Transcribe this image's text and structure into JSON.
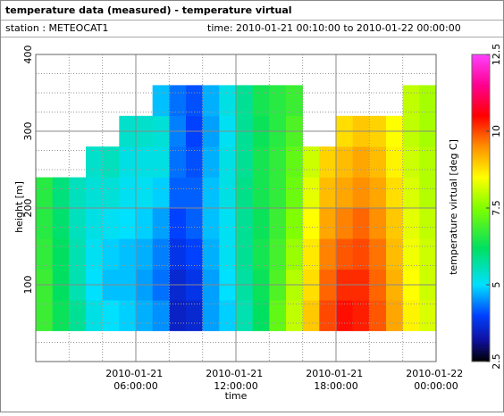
{
  "header": {
    "title": "temperature data (measured) - temperature virtual",
    "station": "station : METEOCAT1",
    "time_range": "time: 2010-01-21 00:10:00 to 2010-01-22 00:00:00"
  },
  "chart_data": {
    "type": "heatmap",
    "x_label": "time",
    "y_label": "height [m]",
    "colorbar_label": "temperature virtual [deg C]",
    "xlim": [
      0,
      24
    ],
    "ylim": [
      0,
      400
    ],
    "xticks": [
      {
        "value": 6,
        "label": "2010-01-21 06:00:00"
      },
      {
        "value": 12,
        "label": "2010-01-21 12:00:00"
      },
      {
        "value": 18,
        "label": "2010-01-21 18:00:00"
      },
      {
        "value": 24,
        "label": "2010-01-22 00:00:00"
      }
    ],
    "x_minor_ticks": [
      2,
      4,
      8,
      10,
      14,
      16,
      20,
      22
    ],
    "yticks": [
      100,
      200,
      300,
      400
    ],
    "y_minor_ticks": [
      25,
      50,
      75,
      125,
      150,
      175,
      225,
      250,
      275,
      325,
      350,
      375
    ],
    "grid": true,
    "clim": [
      2.5,
      12.5
    ],
    "cticks": [
      2.5,
      5,
      7.5,
      10,
      12.5
    ],
    "colorscale": [
      [
        2.5,
        "#000000"
      ],
      [
        3.2,
        "#1010a0"
      ],
      [
        4.0,
        "#0040ff"
      ],
      [
        5.0,
        "#00e0ff"
      ],
      [
        6.2,
        "#00e060"
      ],
      [
        7.5,
        "#80ff00"
      ],
      [
        8.5,
        "#ffff00"
      ],
      [
        9.5,
        "#ff9000"
      ],
      [
        10.5,
        "#ff0000"
      ],
      [
        11.5,
        "#ff0090"
      ],
      [
        12.5,
        "#ff40ff"
      ]
    ],
    "x_bins": [
      0,
      1,
      2,
      3,
      4,
      5,
      6,
      7,
      8,
      9,
      10,
      11,
      12,
      13,
      14,
      15,
      16,
      17,
      18,
      19,
      20,
      21,
      22,
      23,
      24
    ],
    "y_bins": [
      40,
      80,
      120,
      160,
      200,
      240,
      280,
      320,
      360
    ],
    "z": [
      [
        6.8,
        6.8,
        6.7,
        6.6,
        6.6,
        null,
        null,
        null
      ],
      [
        6.3,
        6.2,
        6.2,
        6.1,
        6.0,
        null,
        null,
        null
      ],
      [
        5.8,
        5.6,
        5.6,
        5.5,
        5.5,
        null,
        null,
        null
      ],
      [
        5.2,
        5.0,
        5.1,
        5.2,
        5.3,
        5.4,
        null,
        null
      ],
      [
        5.0,
        4.8,
        4.9,
        5.1,
        5.3,
        5.5,
        null,
        null
      ],
      [
        4.9,
        4.8,
        4.8,
        5.0,
        5.1,
        5.2,
        5.4,
        null
      ],
      [
        4.7,
        4.6,
        4.7,
        4.9,
        5.1,
        5.2,
        5.4,
        null
      ],
      [
        4.5,
        4.3,
        4.4,
        4.6,
        4.9,
        5.2,
        5.3,
        4.8
      ],
      [
        3.5,
        3.6,
        3.8,
        4.0,
        4.2,
        4.3,
        4.4,
        4.3
      ],
      [
        3.6,
        3.8,
        4.0,
        4.2,
        4.2,
        4.1,
        4.0,
        4.1
      ],
      [
        4.6,
        4.6,
        4.7,
        4.8,
        4.8,
        4.7,
        4.6,
        4.7
      ],
      [
        4.9,
        5.0,
        5.1,
        5.1,
        5.2,
        5.2,
        5.1,
        5.2
      ],
      [
        5.6,
        5.7,
        5.8,
        5.8,
        5.9,
        5.8,
        5.8,
        5.8
      ],
      [
        6.2,
        6.3,
        6.4,
        6.3,
        6.4,
        6.4,
        6.3,
        6.4
      ],
      [
        7.2,
        7.0,
        6.9,
        6.8,
        6.7,
        6.7,
        6.6,
        6.6
      ],
      [
        8.0,
        7.9,
        7.7,
        7.5,
        7.3,
        7.2,
        7.0,
        6.8
      ],
      [
        9.0,
        8.8,
        8.7,
        8.5,
        8.3,
        8.1,
        null,
        null
      ],
      [
        10.0,
        9.8,
        9.6,
        9.3,
        9.1,
        8.9,
        null,
        null
      ],
      [
        10.4,
        10.2,
        9.9,
        9.6,
        9.3,
        9.1,
        8.8,
        null
      ],
      [
        10.3,
        10.2,
        10.0,
        9.8,
        9.5,
        9.3,
        9.0,
        null
      ],
      [
        9.9,
        9.8,
        9.7,
        9.5,
        9.3,
        9.1,
        8.9,
        null
      ],
      [
        9.3,
        9.2,
        9.1,
        9.0,
        8.8,
        8.6,
        8.5,
        null
      ],
      [
        8.6,
        8.5,
        8.4,
        8.3,
        8.2,
        8.1,
        8.0,
        8.0
      ],
      [
        8.2,
        8.1,
        8.1,
        8.0,
        7.9,
        7.9,
        7.8,
        7.8
      ]
    ]
  }
}
